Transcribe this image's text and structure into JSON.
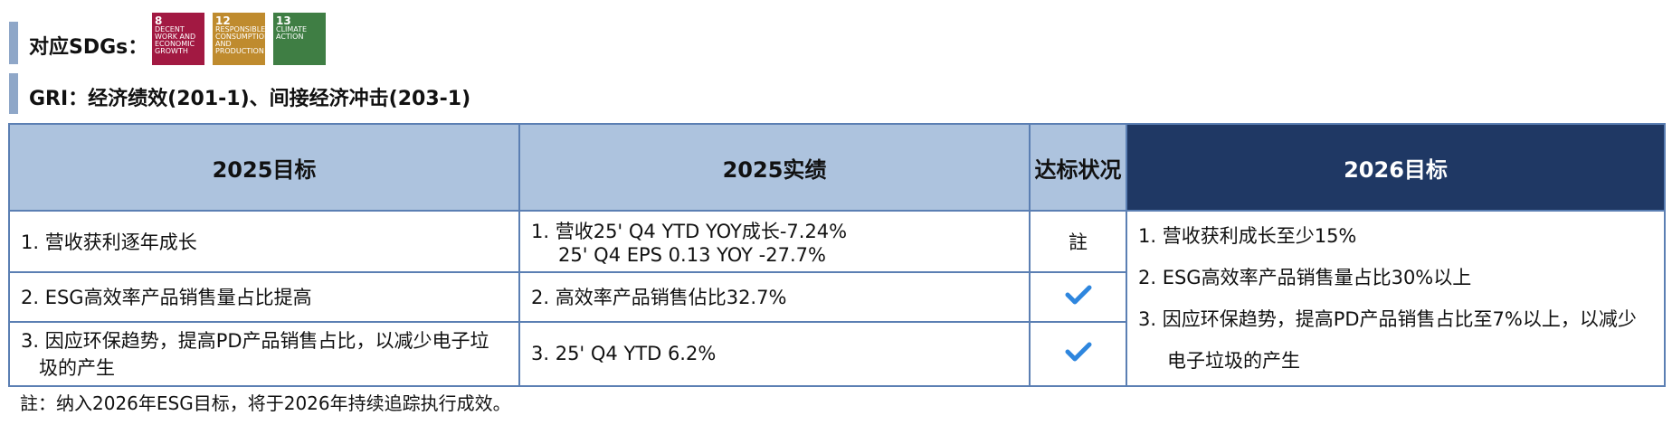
{
  "header": {
    "sdg_label": "对应SDGs：",
    "sdg_icons": [
      {
        "number": "8",
        "caption": "DECENT WORK AND ECONOMIC GROWTH",
        "color": "#a21942"
      },
      {
        "number": "12",
        "caption": "RESPONSIBLE CONSUMPTION AND PRODUCTION",
        "color": "#bf8b2e"
      },
      {
        "number": "13",
        "caption": "CLIMATE ACTION",
        "color": "#3f7e44"
      }
    ],
    "gri": "GRI：经济绩效(201-1)、间接经济冲击(203-1)"
  },
  "table": {
    "columns": [
      "2025目标",
      "2025实绩",
      "达标状况",
      "2026目标"
    ],
    "rows": [
      {
        "target": "1. 营收获利逐年成长",
        "actual": [
          "1. 营收25' Q4 YTD YOY成长-7.24%",
          "25' Q4 EPS 0.13 YOY -27.7%"
        ],
        "status": "註"
      },
      {
        "target": "2. ESG高效率产品销售量占比提高",
        "actual": [
          "2. 高效率产品销售佔比32.7%"
        ]
      },
      {
        "target": "3. 因应环保趋势，提高PD产品销售占比，以减少电子垃圾的产生",
        "actual": [
          "3. 25' Q4 YTD 6.2%"
        ]
      }
    ],
    "targets_2026": [
      "1. 营收获利成长至少15%",
      "2. ESG高效率产品销售量占比30%以上",
      "3. 因应环保趋势，提高PD产品销售占比至7%以上，以减少电子垃圾的产生"
    ]
  },
  "footnote": "註：纳入2026年ESG目标，将于2026年持续追踪执行成效。"
}
